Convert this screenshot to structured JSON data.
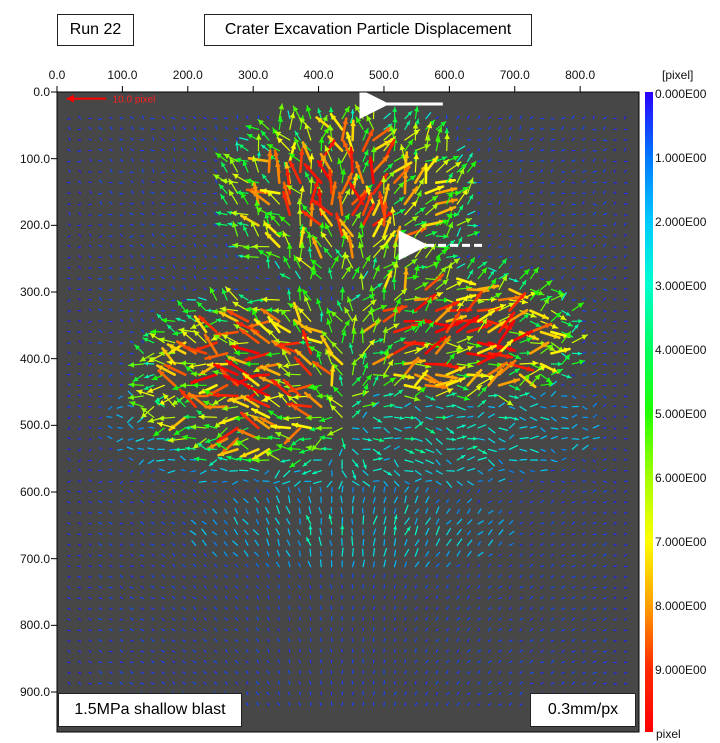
{
  "header": {
    "run_label": "Run 22",
    "title": "Crater Excavation Particle Displacement"
  },
  "footer": {
    "caption": "1.5MPa shallow blast",
    "scale": "0.3mm/px"
  },
  "chart_data": {
    "type": "vector_field",
    "title": "Crater Excavation Particle Displacement",
    "x_ticks": [
      "0.0",
      "100.0",
      "200.0",
      "300.0",
      "400.0",
      "500.0",
      "600.0",
      "700.0",
      "800.0"
    ],
    "y_ticks": [
      "0.0",
      "100.0",
      "200.0",
      "300.0",
      "400.0",
      "500.0",
      "600.0",
      "700.0",
      "800.0",
      "900.0"
    ],
    "xlim": [
      0,
      890
    ],
    "ylim": [
      0,
      960
    ],
    "y_inverted": true,
    "reference_vector_label": "10.0 pixel",
    "colorbar": {
      "unit_top": "[pixel]",
      "unit_bottom": "pixel",
      "min": 0,
      "max": 10,
      "ticks": [
        "0.000E00",
        "1.000E00",
        "2.000E00",
        "3.000E00",
        "4.000E00",
        "5.000E00",
        "6.000E00",
        "7.000E00",
        "8.000E00",
        "9.000E00"
      ],
      "colors": [
        "#2a00ff",
        "#0077ff",
        "#00c8ff",
        "#00ffd0",
        "#00ff60",
        "#20ff00",
        "#a0ff00",
        "#ffff00",
        "#ffa000",
        "#ff2a00",
        "#ff0000"
      ]
    },
    "background_color": "#474747",
    "annotation_arrows": [
      {
        "style": "solid",
        "direction": "left",
        "from": [
          590,
          18
        ],
        "to": [
          490,
          18
        ]
      },
      {
        "style": "dashed",
        "direction": "left",
        "from": [
          650,
          230
        ],
        "to": [
          550,
          230
        ]
      }
    ],
    "field_regions": [
      {
        "desc": "upper crater plume",
        "x": [
          250,
          640
        ],
        "y": [
          20,
          290
        ],
        "magnitude": 7.5
      },
      {
        "desc": "right bulge",
        "x": [
          420,
          800
        ],
        "y": [
          260,
          470
        ],
        "magnitude": 8
      },
      {
        "desc": "left bulge",
        "x": [
          130,
          470
        ],
        "y": [
          300,
          560
        ],
        "magnitude": 8
      },
      {
        "desc": "lower flanks",
        "x": [
          80,
          820
        ],
        "y": [
          400,
          600
        ],
        "magnitude": 3
      },
      {
        "desc": "sub-surface cone",
        "x": [
          200,
          700
        ],
        "y": [
          600,
          720
        ],
        "magnitude": 2.5
      }
    ]
  }
}
